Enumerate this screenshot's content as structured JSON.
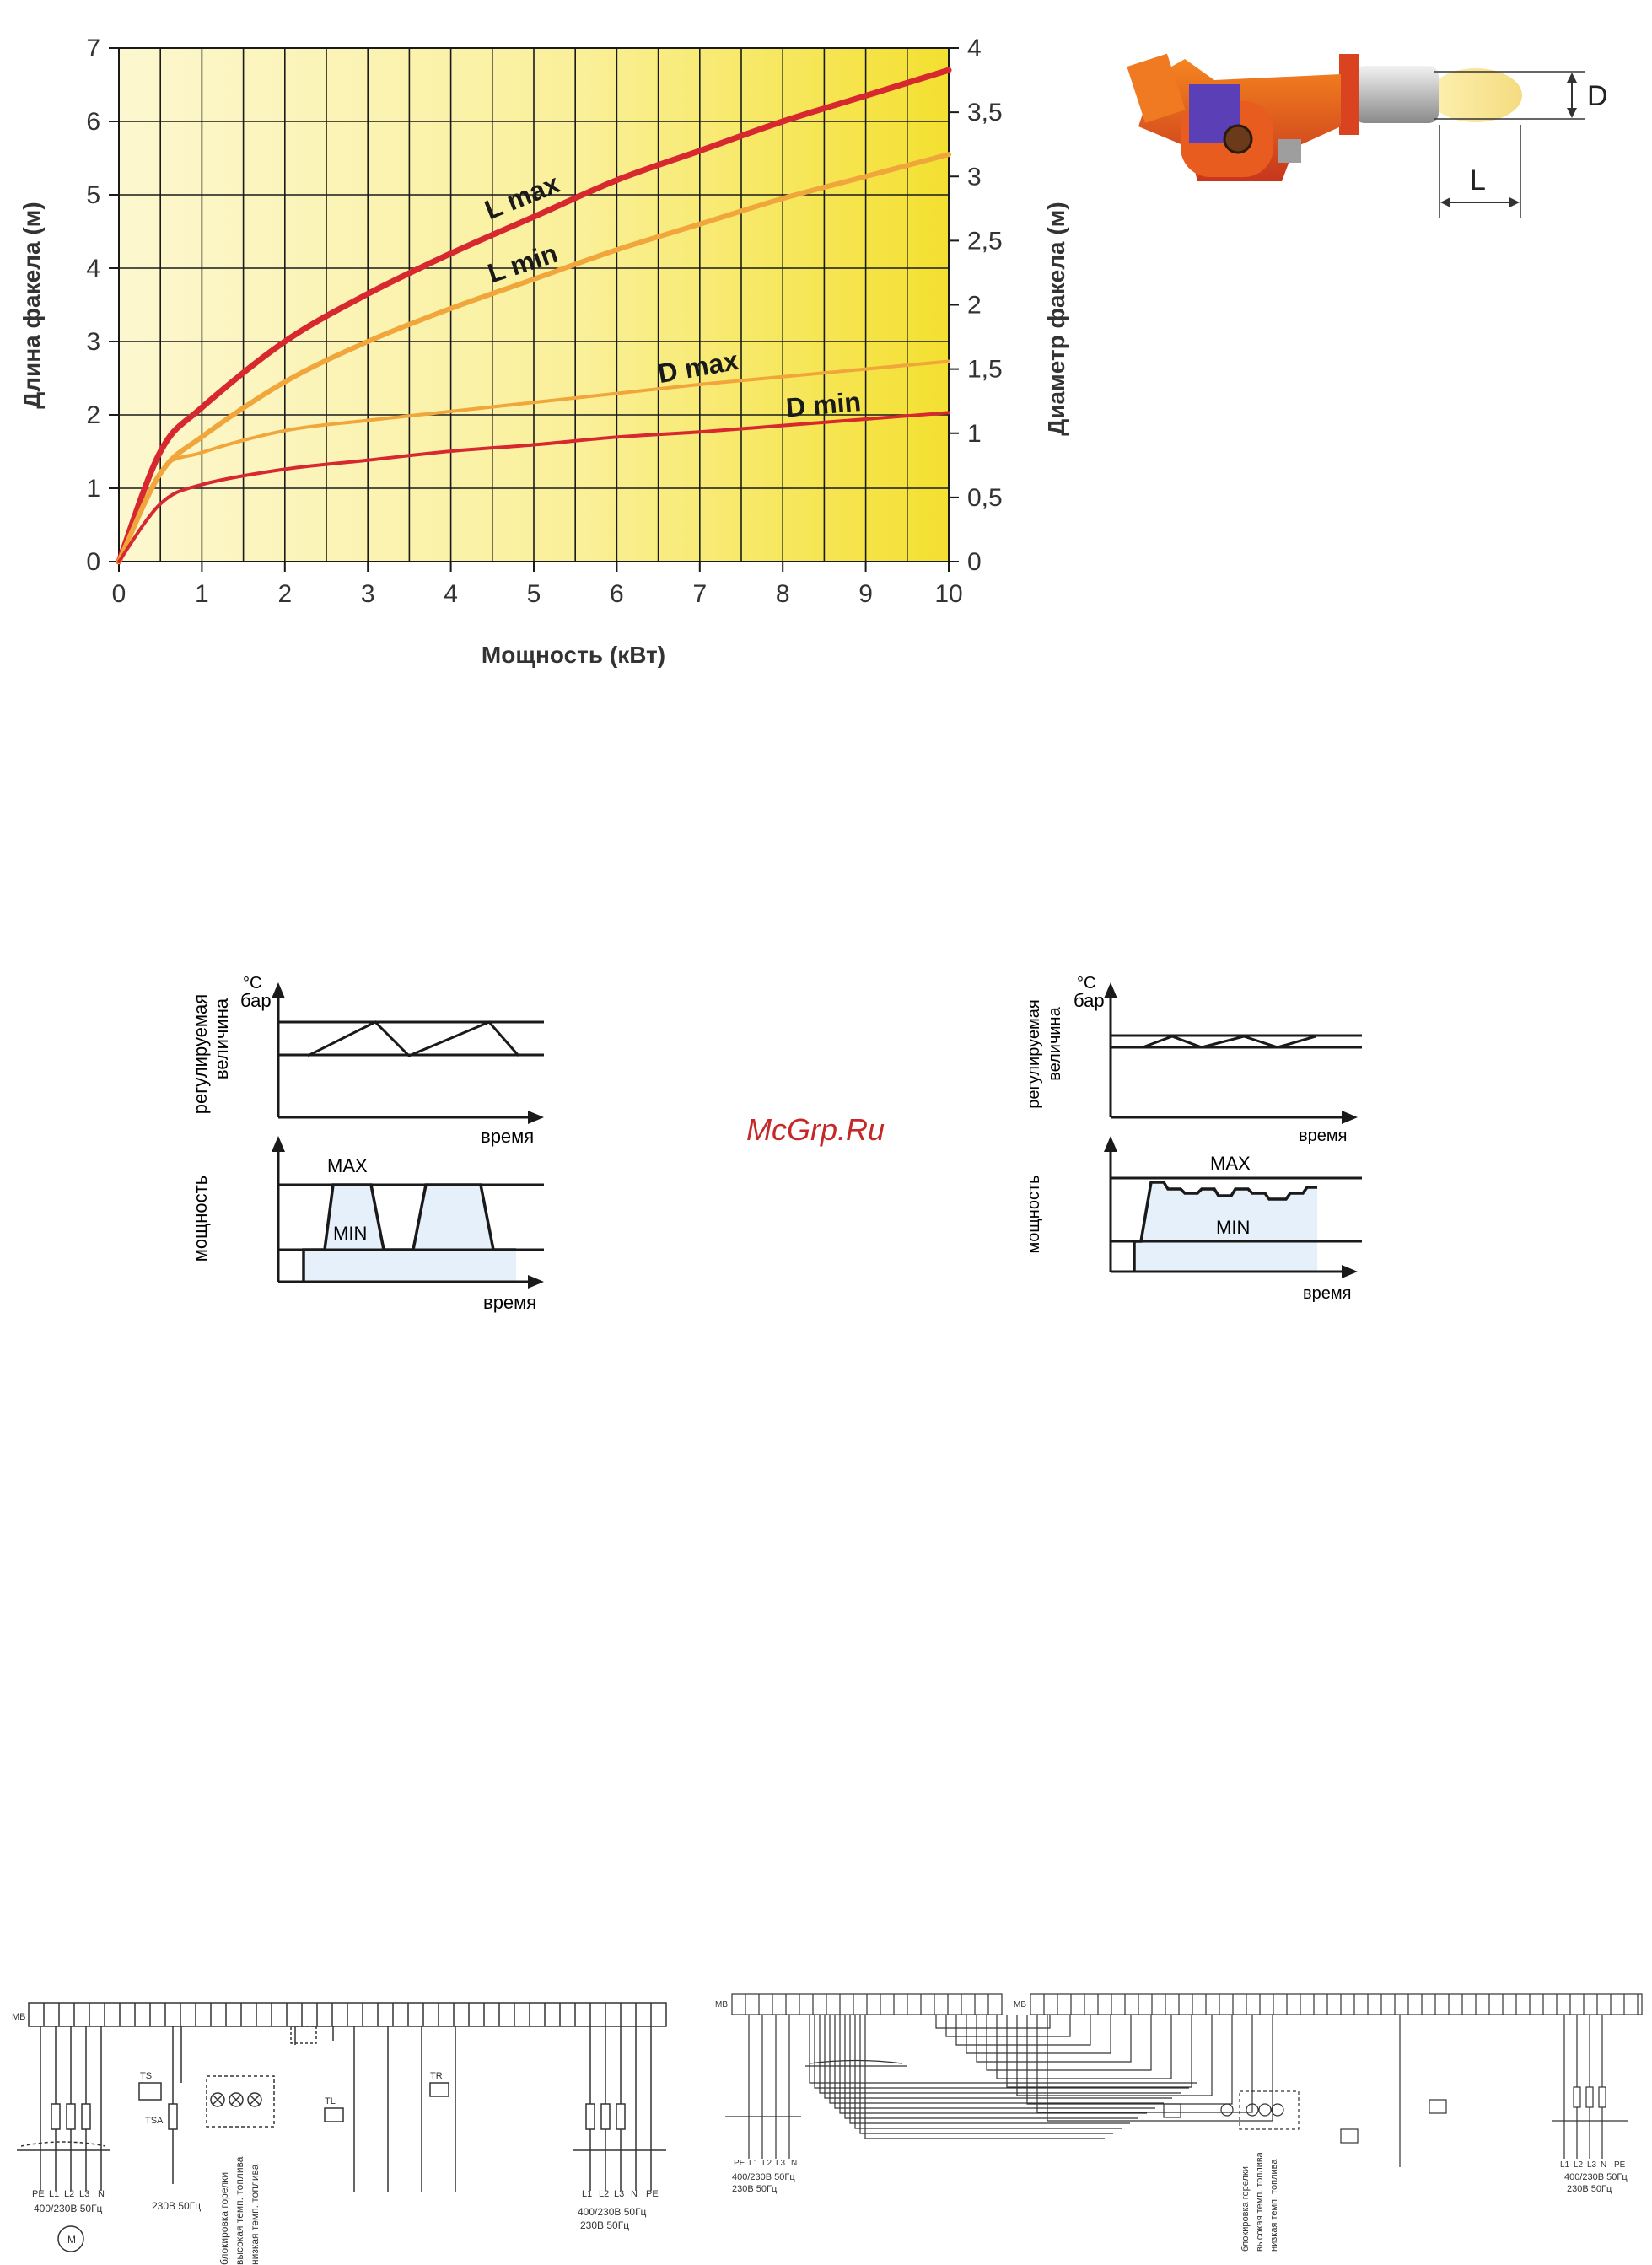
{
  "flame_chart": {
    "chart_data": {
      "type": "line",
      "xlabel": "Мощность (кВт)",
      "ylabel": "Длина факела (м)",
      "y2label": "Диаметр факела (м)",
      "xlim": [
        0,
        10
      ],
      "ylim": [
        0,
        7
      ],
      "y2lim": [
        0,
        4
      ],
      "grid": true,
      "x_ticks": [
        "0",
        "1",
        "2",
        "3",
        "4",
        "5",
        "6",
        "7",
        "8",
        "9",
        "10"
      ],
      "y_ticks": [
        "0",
        "1",
        "2",
        "3",
        "4",
        "5",
        "6",
        "7"
      ],
      "y2_ticks": [
        "0",
        "0,5",
        "1",
        "1,5",
        "2",
        "2,5",
        "3",
        "3,5",
        "4"
      ],
      "series": [
        {
          "name": "L max",
          "axis": "left",
          "color": "#d7282f",
          "x": [
            0,
            0.5,
            1,
            2,
            3,
            4,
            5,
            6,
            7,
            8,
            9,
            10
          ],
          "y": [
            0,
            1.5,
            2.1,
            3.0,
            3.65,
            4.2,
            4.7,
            5.2,
            5.6,
            6.0,
            6.35,
            6.7
          ]
        },
        {
          "name": "L min",
          "axis": "left",
          "color": "#f0a63a",
          "x": [
            0,
            0.5,
            1,
            2,
            3,
            4,
            5,
            6,
            7,
            8,
            9,
            10
          ],
          "y": [
            0,
            1.2,
            1.7,
            2.45,
            3.0,
            3.45,
            3.85,
            4.25,
            4.6,
            4.95,
            5.25,
            5.55
          ]
        },
        {
          "name": "D max",
          "axis": "right",
          "color": "#f0a63a",
          "x": [
            0,
            0.5,
            1,
            2,
            3,
            4,
            5,
            6,
            7,
            8,
            9,
            10
          ],
          "y": [
            0,
            0.7,
            0.85,
            1.02,
            1.1,
            1.17,
            1.24,
            1.31,
            1.38,
            1.44,
            1.5,
            1.56
          ]
        },
        {
          "name": "D min",
          "axis": "right",
          "color": "#d7282f",
          "x": [
            0,
            0.5,
            1,
            2,
            3,
            4,
            5,
            6,
            7,
            8,
            9,
            10
          ],
          "y": [
            0,
            0.45,
            0.6,
            0.72,
            0.79,
            0.86,
            0.91,
            0.97,
            1.01,
            1.06,
            1.11,
            1.16
          ]
        }
      ]
    }
  },
  "burner_diagram": {
    "label_d": "D",
    "label_l": "L"
  },
  "control_left": {
    "unit_top": "°C",
    "unit_bottom": "бар",
    "y_label_1": "регулируемая",
    "y_label_2": "величина",
    "x_label": "время",
    "power_label": "мощность",
    "max": "MAX",
    "min": "MIN",
    "x_label_2": "время"
  },
  "control_right": {
    "unit_top": "°C",
    "unit_bottom": "бар",
    "y_label_1": "регулируемая",
    "y_label_2": "величина",
    "x_label": "время",
    "power_label": "мощность",
    "max": "MAX",
    "min": "MIN",
    "x_label_2": "время"
  },
  "watermark": "McGrp.Ru",
  "wiring_left": {
    "left_supply": "400/230В 50Гц",
    "phases": [
      "PE",
      "L1",
      "L2",
      "L3",
      "N"
    ],
    "single_phase": "230В 50Гц",
    "vlabels": [
      "блокировка горелки",
      "высокая темп. топлива",
      "низкая темп. топлива"
    ],
    "right_supply_1": "400/230В 50Гц",
    "right_supply_2": "230В 50Гц",
    "right_phases": [
      "L1",
      "L2",
      "L3",
      "N",
      "PE"
    ],
    "ts": "TS",
    "tsa": "TSA",
    "tl": "TL",
    "tr": "TR",
    "mb": "MB"
  },
  "wiring_right": {
    "supply_1": "400/230В 50Гц",
    "supply_2": "230В 50Гц",
    "phases": [
      "PE",
      "L1",
      "L2",
      "L3",
      "N"
    ],
    "vlabels": [
      "блокировка горелки",
      "высокая темп. топлива",
      "низкая темп. топлива"
    ],
    "right_supply_1": "400/230В 50Гц",
    "right_supply_2": "230В 50Гц",
    "right_phases": [
      "L1",
      "L2",
      "L3",
      "N",
      "PE"
    ],
    "mb": "MB",
    "mb2": "MB"
  }
}
